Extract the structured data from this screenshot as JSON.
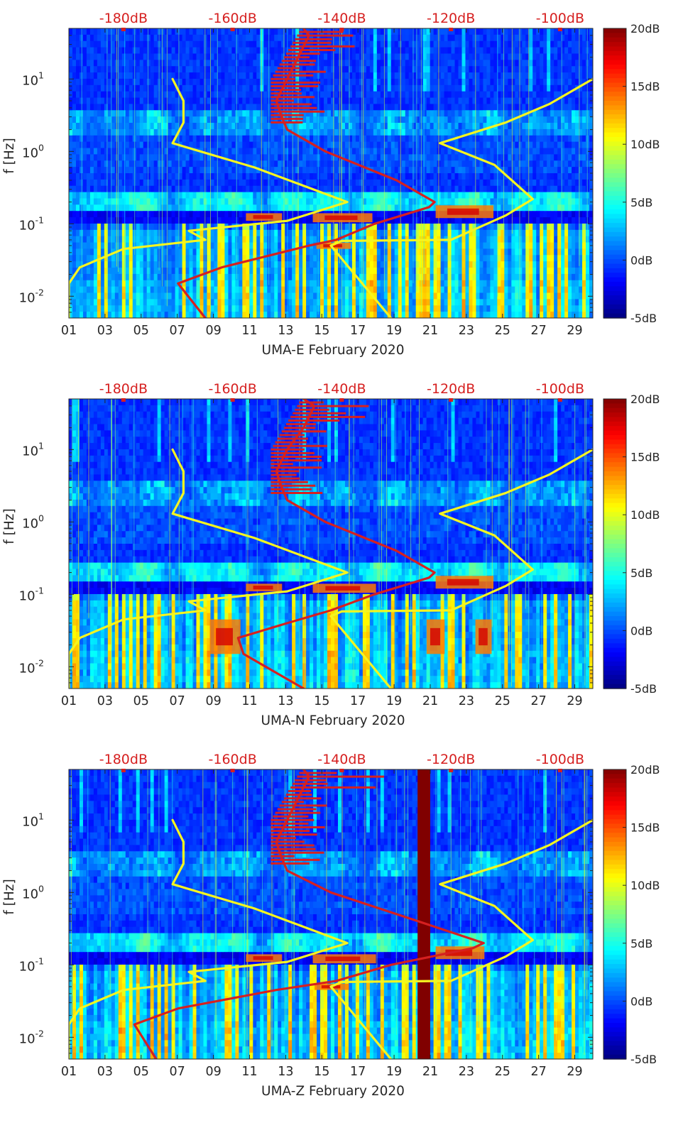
{
  "chart_data": [
    {
      "type": "heatmap",
      "title": "UMA-E",
      "xlabel": "UMA-E February 2020",
      "ylabel": "f [Hz]",
      "x_ticks": [
        "01",
        "03",
        "05",
        "07",
        "09",
        "11",
        "13",
        "15",
        "17",
        "19",
        "21",
        "23",
        "25",
        "27",
        "29"
      ],
      "x_range_days": [
        1,
        30
      ],
      "y_ticks": [
        "10^-2",
        "10^-1",
        "10^0",
        "10^1"
      ],
      "y_range_hz": [
        0.005,
        50
      ],
      "y_scale": "log",
      "top_axis_labels": [
        "-180dB",
        "-160dB",
        "-140dB",
        "-120dB",
        "-100dB"
      ],
      "top_axis_range_db": [
        -190,
        -94
      ],
      "colorbar": {
        "labels": [
          "20dB",
          "15dB",
          "10dB",
          "5dB",
          "0dB",
          "-5dB"
        ],
        "range_db": [
          -5,
          20
        ],
        "colormap": "jet"
      },
      "hot_bands": [
        {
          "day_start": 10.8,
          "day_end": 12.8,
          "f_low": 0.11,
          "f_high": 0.14
        },
        {
          "day_start": 14.5,
          "day_end": 17.8,
          "f_low": 0.105,
          "f_high": 0.14
        },
        {
          "day_start": 21.3,
          "day_end": 24.5,
          "f_low": 0.12,
          "f_high": 0.18
        },
        {
          "day_start": 14.7,
          "day_end": 16.6,
          "f_low": 0.045,
          "f_high": 0.055
        }
      ],
      "broad_bands": [],
      "series": [
        {
          "name": "red power spectral density curve (top dB axis)",
          "color": "#d62020",
          "points": [
            [
              -165,
              0.005
            ],
            [
              -170,
              0.015
            ],
            [
              -162,
              0.025
            ],
            [
              -146,
              0.05
            ],
            [
              -141,
              0.06
            ],
            [
              -134,
              0.1
            ],
            [
              -124,
              0.17
            ],
            [
              -123,
              0.2
            ],
            [
              -130,
              0.4
            ],
            [
              -143,
              1.0
            ],
            [
              -150,
              2.0
            ],
            [
              -151,
              3.0
            ],
            [
              -152,
              5.0
            ],
            [
              -150,
              10.0
            ],
            [
              -148,
              20.0
            ],
            [
              -146,
              40.0
            ],
            [
              -147,
              50.0
            ]
          ]
        },
        {
          "name": "yellow low-noise model",
          "color": "#f5f520",
          "points": [
            [
              -190,
              0.005
            ],
            [
              -190,
              0.015
            ],
            [
              -188,
              0.025
            ],
            [
              -180,
              0.045
            ],
            [
              -165,
              0.06
            ],
            [
              -168,
              0.08
            ],
            [
              -150,
              0.11
            ],
            [
              -139,
              0.2
            ],
            [
              -156,
              0.6
            ],
            [
              -171,
              1.3
            ],
            [
              -169,
              2.5
            ],
            [
              -169,
              5.0
            ],
            [
              -171,
              10.0
            ]
          ]
        },
        {
          "name": "yellow high-noise model",
          "color": "#f5f520",
          "points": [
            [
              -131,
              0.005
            ],
            [
              -142,
              0.05
            ],
            [
              -140,
              0.058
            ],
            [
              -120,
              0.06
            ],
            [
              -110,
              0.13
            ],
            [
              -105,
              0.22
            ],
            [
              -112,
              0.65
            ],
            [
              -122,
              1.3
            ],
            [
              -110,
              2.5
            ],
            [
              -102,
              4.5
            ],
            [
              -94,
              10.0
            ]
          ]
        }
      ]
    },
    {
      "type": "heatmap",
      "title": "UMA-N",
      "xlabel": "UMA-N February 2020",
      "ylabel": "f [Hz]",
      "x_ticks": [
        "01",
        "03",
        "05",
        "07",
        "09",
        "11",
        "13",
        "15",
        "17",
        "19",
        "21",
        "23",
        "25",
        "27",
        "29"
      ],
      "x_range_days": [
        1,
        30
      ],
      "y_ticks": [
        "10^-2",
        "10^-1",
        "10^0",
        "10^1"
      ],
      "y_range_hz": [
        0.005,
        50
      ],
      "y_scale": "log",
      "top_axis_labels": [
        "-180dB",
        "-160dB",
        "-140dB",
        "-120dB",
        "-100dB"
      ],
      "top_axis_range_db": [
        -190,
        -94
      ],
      "colorbar": {
        "labels": [
          "20dB",
          "15dB",
          "10dB",
          "5dB",
          "0dB",
          "-5dB"
        ],
        "range_db": [
          -5,
          20
        ],
        "colormap": "jet"
      },
      "hot_bands": [
        {
          "day_start": 10.8,
          "day_end": 12.8,
          "f_low": 0.11,
          "f_high": 0.14
        },
        {
          "day_start": 14.5,
          "day_end": 18.0,
          "f_low": 0.105,
          "f_high": 0.14
        },
        {
          "day_start": 21.3,
          "day_end": 24.5,
          "f_low": 0.12,
          "f_high": 0.18
        },
        {
          "day_start": 8.8,
          "day_end": 10.5,
          "f_low": 0.015,
          "f_high": 0.045
        },
        {
          "day_start": 20.8,
          "day_end": 21.8,
          "f_low": 0.015,
          "f_high": 0.045
        },
        {
          "day_start": 23.5,
          "day_end": 24.4,
          "f_low": 0.015,
          "f_high": 0.045
        }
      ],
      "broad_bands": [],
      "series": [
        {
          "name": "red power spectral density curve (top dB axis)",
          "color": "#d62020",
          "points": [
            [
              -147,
              0.005
            ],
            [
              -158,
              0.015
            ],
            [
              -159,
              0.025
            ],
            [
              -150,
              0.04
            ],
            [
              -142,
              0.06
            ],
            [
              -134,
              0.1
            ],
            [
              -124,
              0.17
            ],
            [
              -123,
              0.2
            ],
            [
              -130,
              0.4
            ],
            [
              -143,
              1.0
            ],
            [
              -150,
              2.0
            ],
            [
              -151,
              3.0
            ],
            [
              -152,
              5.0
            ],
            [
              -150,
              10.0
            ],
            [
              -147,
              20.0
            ],
            [
              -145,
              40.0
            ],
            [
              -147,
              50.0
            ]
          ]
        },
        {
          "name": "yellow low-noise model",
          "color": "#f5f520",
          "points": [
            [
              -190,
              0.005
            ],
            [
              -190,
              0.015
            ],
            [
              -188,
              0.025
            ],
            [
              -180,
              0.045
            ],
            [
              -165,
              0.06
            ],
            [
              -168,
              0.08
            ],
            [
              -150,
              0.11
            ],
            [
              -139,
              0.2
            ],
            [
              -156,
              0.6
            ],
            [
              -171,
              1.3
            ],
            [
              -169,
              2.5
            ],
            [
              -169,
              5.0
            ],
            [
              -171,
              10.0
            ]
          ]
        },
        {
          "name": "yellow high-noise model",
          "color": "#f5f520",
          "points": [
            [
              -131,
              0.005
            ],
            [
              -142,
              0.05
            ],
            [
              -140,
              0.058
            ],
            [
              -120,
              0.06
            ],
            [
              -110,
              0.13
            ],
            [
              -105,
              0.22
            ],
            [
              -112,
              0.65
            ],
            [
              -122,
              1.3
            ],
            [
              -110,
              2.5
            ],
            [
              -102,
              4.5
            ],
            [
              -94,
              10.0
            ]
          ]
        }
      ]
    },
    {
      "type": "heatmap",
      "title": "UMA-Z",
      "xlabel": "UMA-Z February 2020",
      "ylabel": "f [Hz]",
      "x_ticks": [
        "01",
        "03",
        "05",
        "07",
        "09",
        "11",
        "13",
        "15",
        "17",
        "19",
        "21",
        "23",
        "25",
        "27",
        "29"
      ],
      "x_range_days": [
        1,
        30
      ],
      "y_ticks": [
        "10^-2",
        "10^-1",
        "10^0",
        "10^1"
      ],
      "y_range_hz": [
        0.005,
        50
      ],
      "y_scale": "log",
      "top_axis_labels": [
        "-180dB",
        "-160dB",
        "-140dB",
        "-120dB",
        "-100dB"
      ],
      "top_axis_range_db": [
        -190,
        -94
      ],
      "colorbar": {
        "labels": [
          "20dB",
          "15dB",
          "10dB",
          "5dB",
          "0dB",
          "-5dB"
        ],
        "range_db": [
          -5,
          20
        ],
        "colormap": "jet"
      },
      "hot_bands": [
        {
          "day_start": 10.8,
          "day_end": 12.8,
          "f_low": 0.11,
          "f_high": 0.14
        },
        {
          "day_start": 14.5,
          "day_end": 18.0,
          "f_low": 0.105,
          "f_high": 0.14
        },
        {
          "day_start": 21.3,
          "day_end": 24.0,
          "f_low": 0.12,
          "f_high": 0.18
        },
        {
          "day_start": 14.6,
          "day_end": 16.5,
          "f_low": 0.045,
          "f_high": 0.055
        }
      ],
      "broad_bands": [
        {
          "day_start": 20.3,
          "day_end": 21.0,
          "color": "#800000"
        }
      ],
      "series": [
        {
          "name": "red power spectral density curve (top dB axis)",
          "color": "#d62020",
          "points": [
            [
              -174,
              0.005
            ],
            [
              -178,
              0.015
            ],
            [
              -170,
              0.025
            ],
            [
              -152,
              0.045
            ],
            [
              -141,
              0.06
            ],
            [
              -131,
              0.1
            ],
            [
              -116,
              0.17
            ],
            [
              -114,
              0.2
            ],
            [
              -126,
              0.4
            ],
            [
              -142,
              1.0
            ],
            [
              -150,
              2.0
            ],
            [
              -151,
              3.0
            ],
            [
              -152,
              5.0
            ],
            [
              -150,
              10.0
            ],
            [
              -148,
              20.0
            ],
            [
              -146,
              40.0
            ],
            [
              -147,
              50.0
            ]
          ]
        },
        {
          "name": "yellow low-noise model",
          "color": "#f5f520",
          "points": [
            [
              -190,
              0.005
            ],
            [
              -190,
              0.015
            ],
            [
              -188,
              0.025
            ],
            [
              -180,
              0.045
            ],
            [
              -165,
              0.06
            ],
            [
              -168,
              0.08
            ],
            [
              -150,
              0.11
            ],
            [
              -139,
              0.2
            ],
            [
              -156,
              0.6
            ],
            [
              -171,
              1.3
            ],
            [
              -169,
              2.5
            ],
            [
              -169,
              5.0
            ],
            [
              -171,
              10.0
            ]
          ]
        },
        {
          "name": "yellow high-noise model",
          "color": "#f5f520",
          "points": [
            [
              -131,
              0.005
            ],
            [
              -142,
              0.05
            ],
            [
              -140,
              0.058
            ],
            [
              -120,
              0.06
            ],
            [
              -110,
              0.13
            ],
            [
              -105,
              0.22
            ],
            [
              -112,
              0.65
            ],
            [
              -122,
              1.3
            ],
            [
              -110,
              2.5
            ],
            [
              -102,
              4.5
            ],
            [
              -94,
              10.0
            ]
          ]
        }
      ]
    }
  ]
}
